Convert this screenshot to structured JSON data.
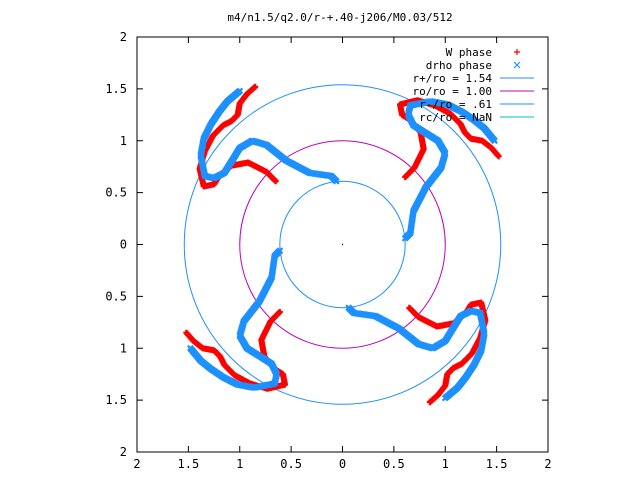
{
  "chart_data": {
    "type": "scatter",
    "title": "m4/n1.5/q2.0/r-+.40-j206/M0.03/512",
    "xlabel": "",
    "ylabel": "",
    "xlim": [
      -2,
      2
    ],
    "ylim": [
      -2,
      2
    ],
    "x_tick_values": [
      -2,
      -1.5,
      -1,
      -0.5,
      0,
      0.5,
      1,
      1.5,
      2
    ],
    "y_tick_values": [
      -2,
      -1.5,
      -1,
      -0.5,
      0,
      0.5,
      1,
      1.5,
      2
    ],
    "x_tick_labels": [
      "2",
      "1.5",
      "1",
      "0.5",
      "0",
      "0.5",
      "1",
      "1.5",
      "2"
    ],
    "y_tick_labels": [
      "2",
      "1.5",
      "1",
      "0.5",
      "0",
      "0.5",
      "1",
      "1.5",
      "2"
    ],
    "grid": false,
    "legend_position": "top-right",
    "legend": [
      {
        "label": "W phase",
        "marker": "+",
        "color": "#ff0000"
      },
      {
        "label": "drho phase",
        "marker": "x",
        "color": "#1e90ff"
      },
      {
        "label": "r+/ro = 1.54",
        "marker": "line",
        "color": "#1e90ff"
      },
      {
        "label": "ro/ro = 1.00",
        "marker": "line",
        "color": "#c000c0"
      },
      {
        "label": "r-/ro = .61",
        "marker": "line",
        "color": "#1e90ff"
      },
      {
        "label": "rc/ro = NaN",
        "marker": "line",
        "color": "#00c0c0"
      }
    ],
    "circles": [
      {
        "name": "r+/ro = 1.54",
        "radius": 1.54,
        "color": "#1e90ff"
      },
      {
        "name": "ro/ro = 1.00",
        "radius": 1.0,
        "color": "#c000c0"
      },
      {
        "name": "r-/ro = .61",
        "radius": 0.61,
        "color": "#1e90ff"
      }
    ],
    "series": [
      {
        "name": "W phase",
        "color": "#ff0000",
        "arm": [
          [
            0.61,
            0.65
          ],
          [
            0.7,
            0.74
          ],
          [
            0.79,
            0.92
          ],
          [
            0.76,
            1.08
          ],
          [
            0.66,
            1.2
          ],
          [
            0.58,
            1.25
          ],
          [
            0.56,
            1.35
          ],
          [
            0.73,
            1.39
          ],
          [
            0.9,
            1.34
          ],
          [
            1.05,
            1.26
          ],
          [
            1.15,
            1.16
          ],
          [
            1.19,
            1.08
          ],
          [
            1.25,
            1.02
          ],
          [
            1.36,
            1.0
          ],
          [
            1.45,
            0.93
          ],
          [
            1.52,
            0.85
          ]
        ],
        "rotations_deg": [
          0,
          90,
          180,
          270
        ]
      },
      {
        "name": "drho phase",
        "color": "#1e90ff",
        "arm": [
          [
            0.61,
            0.06
          ],
          [
            0.66,
            0.11
          ],
          [
            0.69,
            0.32
          ],
          [
            0.81,
            0.55
          ],
          [
            0.96,
            0.74
          ],
          [
            1.0,
            0.88
          ],
          [
            0.93,
            1.0
          ],
          [
            0.8,
            1.08
          ],
          [
            0.69,
            1.15
          ],
          [
            0.64,
            1.25
          ],
          [
            0.66,
            1.34
          ],
          [
            0.86,
            1.38
          ],
          [
            1.02,
            1.35
          ],
          [
            1.16,
            1.28
          ],
          [
            1.28,
            1.2
          ],
          [
            1.38,
            1.12
          ],
          [
            1.48,
            1.0
          ]
        ],
        "rotations_deg": [
          0,
          90,
          180,
          270
        ]
      }
    ]
  }
}
